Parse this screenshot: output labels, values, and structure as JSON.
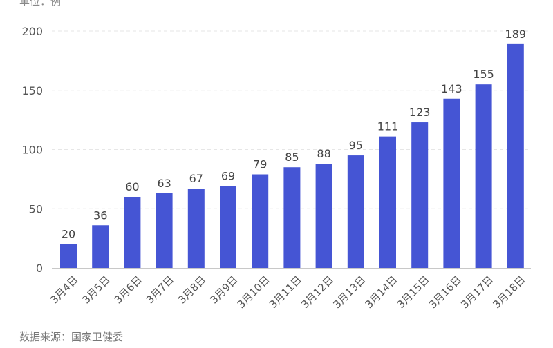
{
  "unit_label": "单位：例",
  "source_label": "数据来源：国家卫健委",
  "colors": {
    "bar": "#4555d4",
    "grid": "#e6e6e6",
    "axis": "#c8c8c8",
    "tick_text": "#555555",
    "value_text": "#444444"
  },
  "chart_data": {
    "type": "bar",
    "title": "",
    "xlabel": "",
    "ylabel": "",
    "categories": [
      "3月4日",
      "3月5日",
      "3月6日",
      "3月7日",
      "3月8日",
      "3月9日",
      "3月10日",
      "3月11日",
      "3月12日",
      "3月13日",
      "3月14日",
      "3月15日",
      "3月16日",
      "3月17日",
      "3月18日"
    ],
    "values": [
      20,
      36,
      60,
      63,
      67,
      69,
      79,
      85,
      88,
      95,
      111,
      123,
      143,
      155,
      189
    ],
    "ylim": [
      0,
      200
    ],
    "yticks": [
      0,
      50,
      100,
      150,
      200
    ],
    "grid": true,
    "data_labels": true
  }
}
